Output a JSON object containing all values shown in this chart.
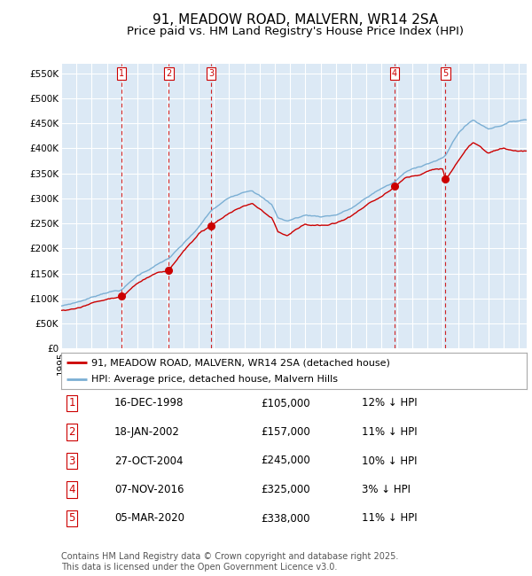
{
  "title": "91, MEADOW ROAD, MALVERN, WR14 2SA",
  "subtitle": "Price paid vs. HM Land Registry's House Price Index (HPI)",
  "ylim": [
    0,
    570000
  ],
  "yticks": [
    0,
    50000,
    100000,
    150000,
    200000,
    250000,
    300000,
    350000,
    400000,
    450000,
    500000,
    550000
  ],
  "background_color": "#dce9f5",
  "grid_color": "#ffffff",
  "red_line_color": "#cc0000",
  "blue_line_color": "#7bafd4",
  "vline_color": "#cc0000",
  "legend_label_red": "91, MEADOW ROAD, MALVERN, WR14 2SA (detached house)",
  "legend_label_blue": "HPI: Average price, detached house, Malvern Hills",
  "sales": [
    {
      "num": 1,
      "date_label": "16-DEC-1998",
      "price": 105000,
      "pct": "12%",
      "year": 1998.96
    },
    {
      "num": 2,
      "date_label": "18-JAN-2002",
      "price": 157000,
      "pct": "11%",
      "year": 2002.05
    },
    {
      "num": 3,
      "date_label": "27-OCT-2004",
      "price": 245000,
      "pct": "10%",
      "year": 2004.82
    },
    {
      "num": 4,
      "date_label": "07-NOV-2016",
      "price": 325000,
      "pct": "3%",
      "year": 2016.85
    },
    {
      "num": 5,
      "date_label": "05-MAR-2020",
      "price": 338000,
      "pct": "11%",
      "year": 2020.18
    }
  ],
  "footer": "Contains HM Land Registry data © Crown copyright and database right 2025.\nThis data is licensed under the Open Government Licence v3.0.",
  "title_fontsize": 11,
  "subtitle_fontsize": 9.5,
  "tick_fontsize": 7.5,
  "legend_fontsize": 8,
  "table_fontsize": 8.5,
  "footer_fontsize": 7
}
